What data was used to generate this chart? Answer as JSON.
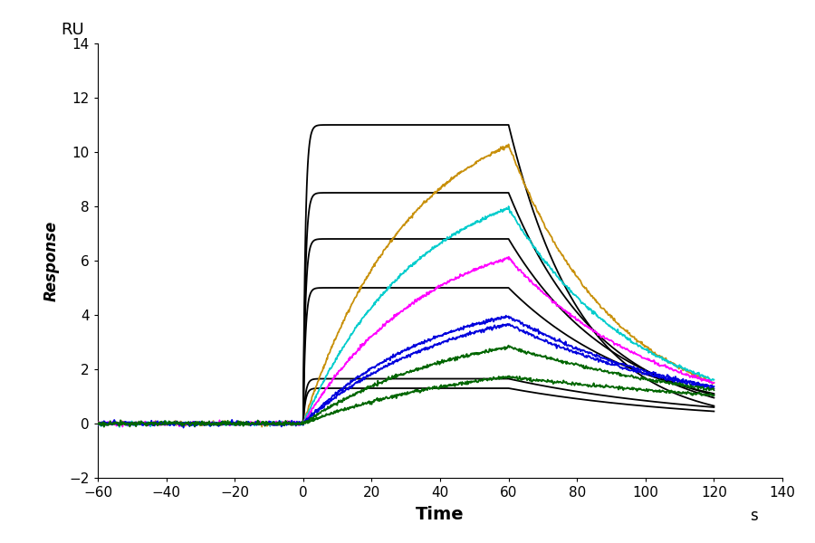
{
  "title": "",
  "xlabel": "Time",
  "ylabel": "Response",
  "ru_label": "RU",
  "s_label": "s",
  "xlim": [
    -60,
    140
  ],
  "ylim": [
    -2,
    14
  ],
  "xticks": [
    -60,
    -40,
    -20,
    0,
    20,
    40,
    60,
    80,
    100,
    120,
    140
  ],
  "yticks": [
    -2,
    0,
    2,
    4,
    6,
    8,
    10,
    12,
    14
  ],
  "background_color": "#ffffff",
  "fit_curves": [
    {
      "color": "#000000",
      "plateau": 11.0,
      "t_plateau_end": 60,
      "dissoc_k": 0.045,
      "dissoc_end_val": 0.65
    },
    {
      "color": "#000000",
      "plateau": 8.5,
      "t_plateau_end": 60,
      "dissoc_k": 0.038,
      "dissoc_end_val": 0.95
    },
    {
      "color": "#000000",
      "plateau": 6.8,
      "t_plateau_end": 60,
      "dissoc_k": 0.032,
      "dissoc_end_val": 1.05
    },
    {
      "color": "#000000",
      "plateau": 5.0,
      "t_plateau_end": 60,
      "dissoc_k": 0.03,
      "dissoc_end_val": 1.1
    },
    {
      "color": "#000000",
      "plateau": 1.65,
      "t_plateau_end": 60,
      "dissoc_k": 0.025,
      "dissoc_end_val": 0.6
    },
    {
      "color": "#000000",
      "plateau": 1.3,
      "t_plateau_end": 60,
      "dissoc_k": 0.022,
      "dissoc_end_val": 0.45
    }
  ],
  "data_curves": [
    {
      "color": "#c8900a",
      "k_on": 0.032,
      "plateau": 12.0,
      "dissoc_k": 0.018,
      "dissoc_end_val": 1.5,
      "noise_seed": 10
    },
    {
      "color": "#00cccc",
      "k_on": 0.03,
      "plateau": 9.5,
      "dissoc_k": 0.016,
      "dissoc_end_val": 1.6,
      "noise_seed": 20
    },
    {
      "color": "#ff00ff",
      "k_on": 0.028,
      "plateau": 7.5,
      "dissoc_k": 0.016,
      "dissoc_end_val": 1.5,
      "noise_seed": 30
    },
    {
      "color": "#0000dd",
      "k_on": 0.026,
      "plateau": 5.0,
      "dissoc_k": 0.015,
      "dissoc_end_val": 1.35,
      "noise_seed": 40
    },
    {
      "color": "#0000dd",
      "k_on": 0.024,
      "plateau": 4.8,
      "dissoc_k": 0.015,
      "dissoc_end_val": 1.3,
      "noise_seed": 50
    },
    {
      "color": "#006600",
      "k_on": 0.022,
      "plateau": 3.85,
      "dissoc_k": 0.014,
      "dissoc_end_val": 1.25,
      "noise_seed": 60
    },
    {
      "color": "#006600",
      "k_on": 0.02,
      "plateau": 2.45,
      "dissoc_k": 0.013,
      "dissoc_end_val": 1.05,
      "noise_seed": 70
    }
  ]
}
